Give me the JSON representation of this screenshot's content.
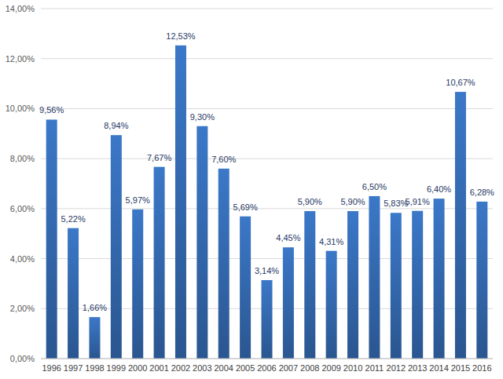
{
  "chart_data": {
    "type": "bar",
    "categories": [
      "1996",
      "1997",
      "1998",
      "1999",
      "2000",
      "2001",
      "2002",
      "2003",
      "2004",
      "2005",
      "2006",
      "2007",
      "2008",
      "2009",
      "2010",
      "2011",
      "2012",
      "2013",
      "2014",
      "2015",
      "2016"
    ],
    "values": [
      9.56,
      5.22,
      1.66,
      8.94,
      5.97,
      7.67,
      12.53,
      9.3,
      7.6,
      5.69,
      3.14,
      4.45,
      5.9,
      4.31,
      5.9,
      6.5,
      5.83,
      5.91,
      6.4,
      10.67,
      6.28
    ],
    "value_labels": [
      "9,56%",
      "5,22%",
      "1,66%",
      "8,94%",
      "5,97%",
      "7,67%",
      "12,53%",
      "9,30%",
      "7,60%",
      "5,69%",
      "3,14%",
      "4,45%",
      "5,90%",
      "4,31%",
      "5,90%",
      "6,50%",
      "5,83%",
      "5,91%",
      "6,40%",
      "10,67%",
      "6,28%"
    ],
    "color": "#3b78c8",
    "ylim": [
      0,
      14
    ],
    "yticks": [
      {
        "value": 0,
        "label": "0,00%"
      },
      {
        "value": 2,
        "label": "2,00%"
      },
      {
        "value": 4,
        "label": "4,00%"
      },
      {
        "value": 6,
        "label": "6,00%"
      },
      {
        "value": 8,
        "label": "8,00%"
      },
      {
        "value": 10,
        "label": "10,00%"
      },
      {
        "value": 12,
        "label": "12,00%"
      },
      {
        "value": 14,
        "label": "14,00%"
      }
    ],
    "grid": true,
    "data_labels": true
  }
}
